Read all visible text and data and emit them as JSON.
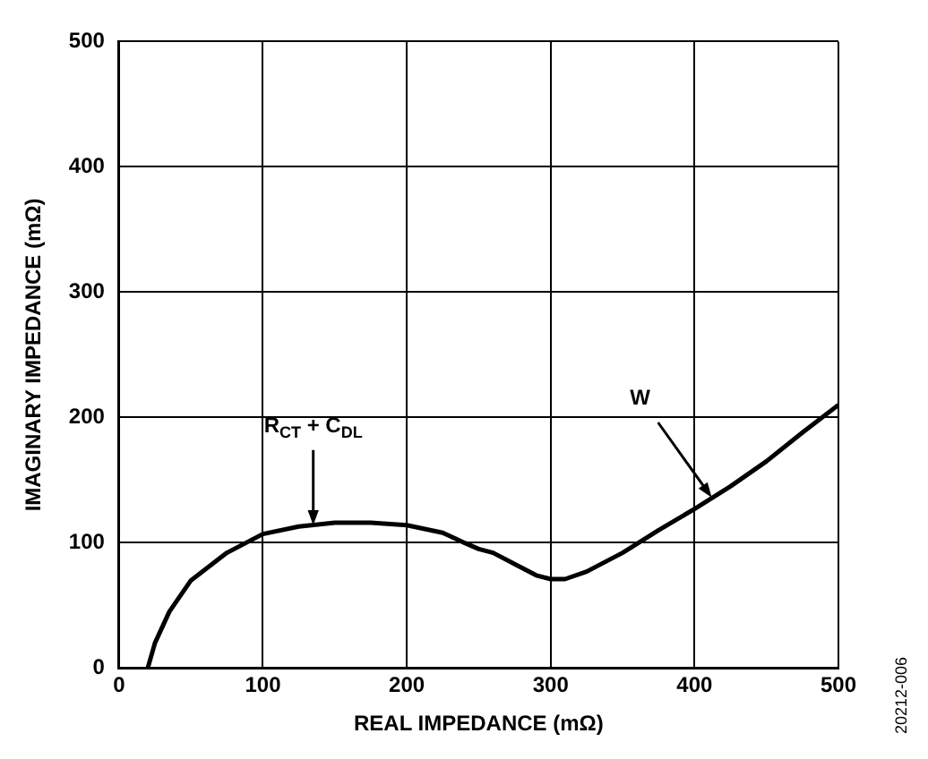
{
  "chart_data": {
    "type": "line",
    "xlabel": "REAL IMPEDANCE (mΩ)",
    "ylabel": "IMAGINARY IMPEDANCE (mΩ)",
    "x": [
      20,
      25,
      35,
      50,
      75,
      100,
      125,
      150,
      175,
      200,
      225,
      240,
      250,
      260,
      275,
      290,
      300,
      310,
      325,
      350,
      375,
      400,
      425,
      450,
      475,
      500
    ],
    "series": [
      {
        "color": "#000000",
        "values": [
          0,
          20,
          45,
          70,
          92,
          107,
          113,
          116,
          116,
          114,
          108,
          100,
          95,
          92,
          83,
          74,
          71,
          71,
          77,
          92,
          110,
          127,
          145,
          165,
          188,
          210
        ]
      }
    ],
    "xlim": [
      0,
      500
    ],
    "xticks": [
      0,
      100,
      200,
      300,
      400,
      500
    ],
    "ylim": [
      0,
      500
    ],
    "yticks": [
      0,
      100,
      200,
      300,
      400,
      500
    ],
    "grid": true,
    "marker": "none",
    "line_style": "solid",
    "annotations": [
      {
        "text": "R$_{CT}$ + C$_{DL}$",
        "x": 135,
        "y": 114
      },
      {
        "text": "W",
        "x": 412,
        "y": 136
      },
      "20212-006"
    ]
  }
}
